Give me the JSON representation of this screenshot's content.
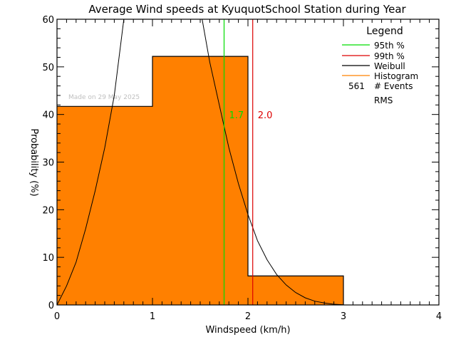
{
  "chart_data": {
    "type": "bar",
    "title": "Average Wind speeds at KyuquotSchool Station during Year",
    "xlabel": "Windspeed (km/h)",
    "ylabel": "Probability (%)",
    "xlim": [
      0,
      4
    ],
    "ylim": [
      0,
      60
    ],
    "x_ticks": [
      "0",
      "1",
      "2",
      "3",
      "4"
    ],
    "y_ticks": [
      "0",
      "10",
      "20",
      "30",
      "40",
      "50",
      "60"
    ],
    "grid": false,
    "bins": [
      {
        "from": 0,
        "to": 1,
        "value": 41.7
      },
      {
        "from": 1,
        "to": 2,
        "value": 52.2
      },
      {
        "from": 2,
        "to": 3,
        "value": 6.1
      }
    ],
    "categories": [
      "0-1",
      "1-2",
      "2-3"
    ],
    "values": [
      41.7,
      52.2,
      6.1
    ],
    "percentile_lines": [
      {
        "name": "95th %",
        "x": 1.75,
        "label": "1.7",
        "color": "#00dd00"
      },
      {
        "name": "99th %",
        "x": 2.05,
        "label": "2.0",
        "color": "#dd0000"
      }
    ],
    "weibull_curve": {
      "color": "#000000",
      "points": [
        [
          0,
          0
        ],
        [
          0.1,
          4
        ],
        [
          0.2,
          9
        ],
        [
          0.3,
          16
        ],
        [
          0.4,
          24
        ],
        [
          0.5,
          33
        ],
        [
          0.6,
          44
        ],
        [
          0.7,
          60
        ],
        [
          1.52,
          60
        ],
        [
          1.6,
          51
        ],
        [
          1.7,
          42
        ],
        [
          1.8,
          33
        ],
        [
          1.9,
          25.5
        ],
        [
          2.0,
          19
        ],
        [
          2.1,
          13.5
        ],
        [
          2.2,
          9.5
        ],
        [
          2.3,
          6.4
        ],
        [
          2.4,
          4.2
        ],
        [
          2.5,
          2.6
        ],
        [
          2.6,
          1.5
        ],
        [
          2.7,
          0.8
        ],
        [
          2.8,
          0.4
        ],
        [
          2.9,
          0.15
        ],
        [
          3.0,
          0.05
        ]
      ]
    },
    "legend": {
      "title": "Legend",
      "position": "top-right",
      "entries": [
        {
          "label": "95th %",
          "color": "#00dd00"
        },
        {
          "label": "99th %",
          "color": "#dd0000"
        },
        {
          "label": "Weibull",
          "color": "#000000"
        },
        {
          "label": "Histogram",
          "color": "#ff8000"
        }
      ],
      "events_count": "561",
      "events_label": "# Events",
      "rms_label": "RMS"
    },
    "annotation": "Made on 29 May 2025"
  },
  "colors": {
    "histogram": "#ff8000",
    "p95": "#00dd00",
    "p99": "#dd0000",
    "axes": "#000000",
    "watermark": "#c0c0c0"
  }
}
